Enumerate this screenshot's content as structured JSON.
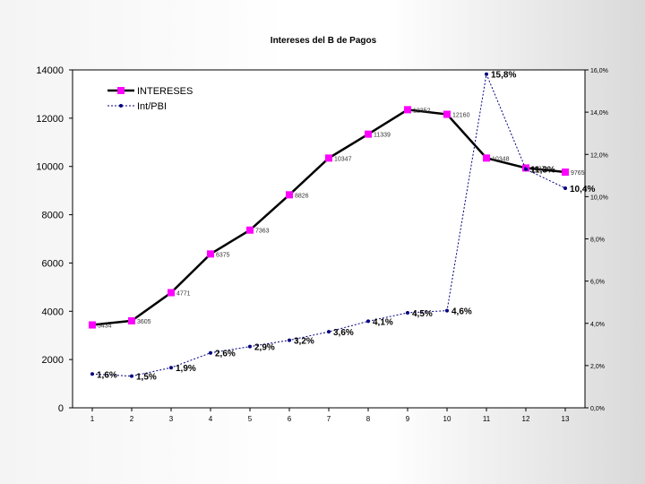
{
  "chart_data": {
    "type": "line",
    "title": "Intereses del B de Pagos",
    "x": [
      1,
      2,
      3,
      4,
      5,
      6,
      7,
      8,
      9,
      10,
      11,
      12,
      13
    ],
    "xlim": [
      1,
      13
    ],
    "ylim": [
      0,
      14000
    ],
    "y2lim": [
      0,
      16
    ],
    "yticks": [
      0,
      2000,
      4000,
      6000,
      8000,
      10000,
      12000,
      14000
    ],
    "y2ticks": [
      "0,0%",
      "2,0%",
      "4,0%",
      "6,0%",
      "8,0%",
      "10,0%",
      "12,0%",
      "14,0%",
      "16,0%"
    ],
    "y2tick_values": [
      0,
      2,
      4,
      6,
      8,
      10,
      12,
      14,
      16
    ],
    "legend_position": "top-left",
    "series": [
      {
        "name": "INTERESES",
        "axis": "left",
        "color": "#000000",
        "marker_color": "#ff00ff",
        "values": [
          3434,
          3605,
          4771,
          6375,
          7363,
          8826,
          10347,
          11339,
          12352,
          12160,
          10348,
          9937,
          9765
        ],
        "labels": [
          "3434",
          "3605",
          "4771",
          "6375",
          "7363",
          "8826",
          "10347",
          "11339",
          "12352",
          "12160",
          "10348",
          "9937",
          "9765"
        ]
      },
      {
        "name": "Int/PBI",
        "axis": "right",
        "color": "#000080",
        "values": [
          1.6,
          1.5,
          1.9,
          2.6,
          2.9,
          3.2,
          3.6,
          4.1,
          4.5,
          4.6,
          15.8,
          11.3,
          10.4
        ],
        "labels": [
          "1,6%",
          "1,5%",
          "1,9%",
          "2,6%",
          "2,9%",
          "3,2%",
          "3,6%",
          "4,1%",
          "4,5%",
          "4,6%",
          "15,8%",
          "11,3%",
          "10,4%"
        ]
      }
    ]
  }
}
